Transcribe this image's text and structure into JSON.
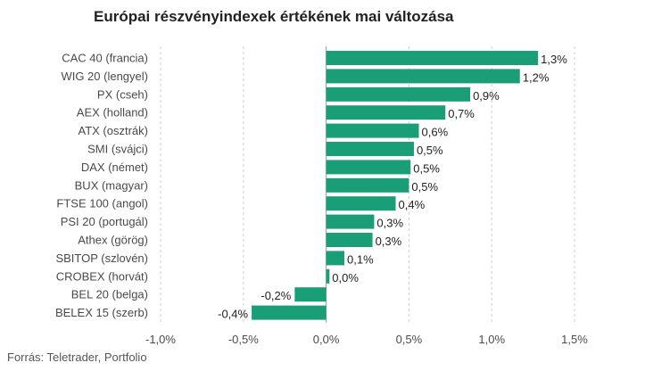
{
  "chart_data": {
    "type": "bar",
    "orientation": "horizontal",
    "title": "Európai részvényindexek értékének mai változása",
    "source": "Forrás: Teletrader, Portfolio",
    "bar_color": "#1a9e77",
    "grid": true,
    "xlim": [
      -1.0,
      1.5
    ],
    "xticks": [
      -1.0,
      -0.5,
      0.0,
      0.5,
      1.0,
      1.5
    ],
    "xtick_labels": [
      "-1,0%",
      "-0,5%",
      "0,0%",
      "0,5%",
      "1,0%",
      "1,5%"
    ],
    "categories": [
      "CAC 40 (francia)",
      "WIG 20 (lengyel)",
      "PX (cseh)",
      "AEX (holland)",
      "ATX (osztrák)",
      "SMI (svájci)",
      "DAX (német)",
      "BUX (magyar)",
      "FTSE 100 (angol)",
      "PSI 20 (portugál)",
      "Athex (görög)",
      "SBITOP (szlovén)",
      "CROBEX (horvát)",
      "BEL 20 (belga)",
      "BELEX 15 (szerb)"
    ],
    "values": [
      1.28,
      1.17,
      0.87,
      0.72,
      0.56,
      0.53,
      0.51,
      0.5,
      0.42,
      0.29,
      0.28,
      0.11,
      0.02,
      -0.19,
      -0.45
    ],
    "value_labels": [
      "1,3%",
      "1,2%",
      "0,9%",
      "0,7%",
      "0,6%",
      "0,5%",
      "0,5%",
      "0,5%",
      "0,4%",
      "0,3%",
      "0,3%",
      "0,1%",
      "0,0%",
      "-0,2%",
      "-0,4%"
    ]
  }
}
